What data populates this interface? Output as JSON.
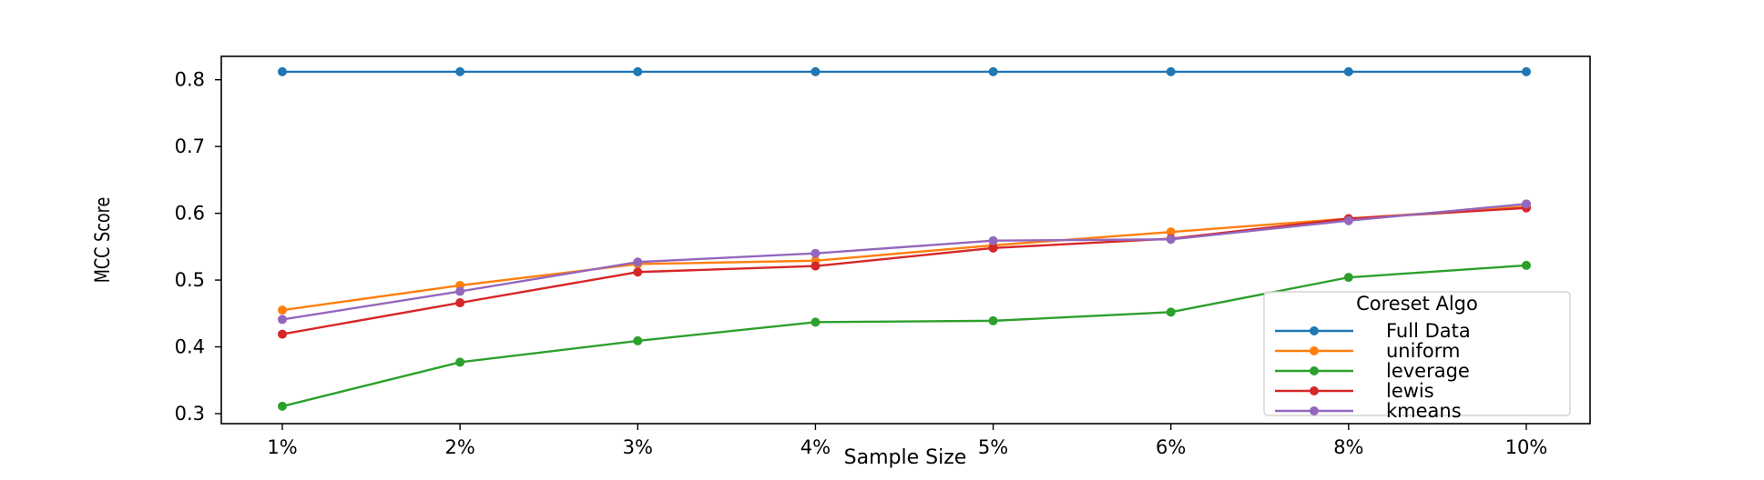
{
  "chart_data": {
    "type": "line",
    "categories": [
      "1%",
      "2%",
      "3%",
      "4%",
      "5%",
      "6%",
      "8%",
      "10%"
    ],
    "xlabel": "Sample Size",
    "ylabel": "MCC Score",
    "ylim": [
      0.285,
      0.835
    ],
    "yticks": [
      "0.3",
      "0.4",
      "0.5",
      "0.6",
      "0.7",
      "0.8"
    ],
    "ytick_values": [
      0.3,
      0.4,
      0.5,
      0.6,
      0.7,
      0.8
    ],
    "grid": false,
    "legend": {
      "title": "Coreset Algo",
      "placement": "lower-right"
    },
    "series": [
      {
        "name": "Full Data",
        "color": "#1f77b4",
        "values": [
          0.812,
          0.812,
          0.812,
          0.812,
          0.812,
          0.812,
          0.812,
          0.812
        ]
      },
      {
        "name": "uniform",
        "color": "#ff7f0e",
        "values": [
          0.455,
          0.492,
          0.524,
          0.529,
          0.552,
          0.572,
          0.592,
          0.61
        ]
      },
      {
        "name": "leverage",
        "color": "#2ca02c",
        "values": [
          0.311,
          0.377,
          0.409,
          0.437,
          0.439,
          0.452,
          0.504,
          0.522
        ]
      },
      {
        "name": "lewis",
        "color": "#d62728",
        "values": [
          0.419,
          0.466,
          0.512,
          0.521,
          0.548,
          0.562,
          0.592,
          0.608
        ]
      },
      {
        "name": "kmeans",
        "color": "#9467bd",
        "values": [
          0.441,
          0.483,
          0.527,
          0.54,
          0.559,
          0.561,
          0.589,
          0.614
        ]
      }
    ]
  }
}
